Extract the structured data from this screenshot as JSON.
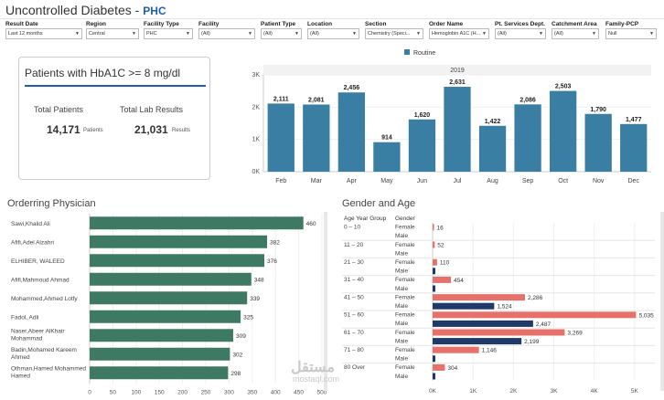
{
  "header": {
    "title": "Uncontrolled Diabetes -",
    "subtitle": "PHC"
  },
  "filters": [
    {
      "label": "Result Date",
      "value": "Last 12 months"
    },
    {
      "label": "Region",
      "value": "Central"
    },
    {
      "label": "Facility Type",
      "value": "PHC"
    },
    {
      "label": "Facility",
      "value": "(All)"
    },
    {
      "label": "Patient Type",
      "value": "(All)"
    },
    {
      "label": "Location",
      "value": "(All)"
    },
    {
      "label": "Section",
      "value": "Chemistry (Speci..."
    },
    {
      "label": "Order Name",
      "value": "Hemoglobin A1C (H..."
    },
    {
      "label": "Pt. Services Dept.",
      "value": "(All)"
    },
    {
      "label": "Catchment Area",
      "value": "(All)"
    },
    {
      "label": "Family-PCP",
      "value": "Null"
    }
  ],
  "kpi": {
    "title": "Patients with HbA1C >= 8 mg/dl",
    "total_patients_label": "Total Patients",
    "total_patients": "14,171",
    "patients_unit": "Patients",
    "total_results_label": "Total Lab Results",
    "total_results": "21,031",
    "results_unit": "Results"
  },
  "sections": {
    "physician": "Orderring Physician",
    "gender_age": "Gender and Age"
  },
  "watermark": {
    "logo": "مستقل",
    "url": "mostaql.com"
  },
  "colors": {
    "teal": "#3a7fa3",
    "green": "#3e7a63",
    "female": "#e8706a",
    "male": "#1f3a68"
  },
  "chart_data": [
    {
      "type": "bar",
      "title": "2019",
      "legend": [
        "Routine"
      ],
      "categories": [
        "Feb",
        "Mar",
        "Apr",
        "May",
        "Jun",
        "Jul",
        "Aug",
        "Sep",
        "Oct",
        "Nov",
        "Dec"
      ],
      "values": [
        2111,
        2081,
        2456,
        914,
        1620,
        2631,
        1422,
        2086,
        2503,
        1790,
        1477
      ],
      "labels": [
        "2,111",
        "2,081",
        "2,456",
        "914",
        "1,620",
        "2,631",
        "1,422",
        "2,086",
        "2,503",
        "1,790",
        "1,477"
      ],
      "yticks": [
        "0K",
        "1K",
        "2K",
        "3K"
      ],
      "ylim": [
        0,
        3000
      ]
    },
    {
      "type": "bar",
      "orientation": "horizontal",
      "title": "Orderring Physician",
      "categories": [
        "Sawi,Khalid Ali",
        "Afifi,Adel Alzahri",
        "ELHIBER, WALEED",
        "Afifi,Mahmoud Ahmad",
        "Mohammed,Ahmed Lotfy",
        "Fadol, Adli",
        "Naser,Abeer AlKhair Mohammad",
        "Badin,Mohamed Kareem Ahmed",
        "Othman,Hamed Mohammed Hamed"
      ],
      "values": [
        460,
        382,
        376,
        348,
        339,
        325,
        309,
        302,
        298
      ],
      "xticks": [
        "0",
        "50",
        "100",
        "150",
        "200",
        "250",
        "300",
        "350",
        "400",
        "450",
        "500"
      ],
      "xlim": [
        0,
        500
      ]
    },
    {
      "type": "bar",
      "orientation": "horizontal",
      "title": "Gender and Age",
      "col_headers": [
        "Age Year Group",
        "Gender"
      ],
      "groups": [
        {
          "age": "0 – 10",
          "female": 16,
          "male": 0,
          "female_label": "16",
          "male_label": ""
        },
        {
          "age": "11 – 20",
          "female": 52,
          "male": 0,
          "female_label": "52",
          "male_label": ""
        },
        {
          "age": "21 – 30",
          "female": 110,
          "male": 0,
          "female_label": "110",
          "male_label": ""
        },
        {
          "age": "31 – 40",
          "female": 454,
          "male": 0,
          "female_label": "454",
          "male_label": ""
        },
        {
          "age": "41 – 50",
          "female": 2286,
          "male": 1524,
          "female_label": "2,286",
          "male_label": "1,524"
        },
        {
          "age": "51 – 60",
          "female": 5035,
          "male": 2487,
          "female_label": "5,035",
          "male_label": "2,487"
        },
        {
          "age": "61 – 70",
          "female": 3269,
          "male": 2199,
          "female_label": "3,269",
          "male_label": "2,199"
        },
        {
          "age": "71 – 80",
          "female": 1146,
          "male": 0,
          "female_label": "1,146",
          "male_label": ""
        },
        {
          "age": "80 Over",
          "female": 304,
          "male": 0,
          "female_label": "304",
          "male_label": ""
        }
      ],
      "gender_labels": [
        "Female",
        "Male"
      ],
      "xticks": [
        "0K",
        "1K",
        "2K",
        "3K",
        "4K",
        "5K"
      ],
      "xlim": [
        0,
        5500
      ]
    }
  ]
}
